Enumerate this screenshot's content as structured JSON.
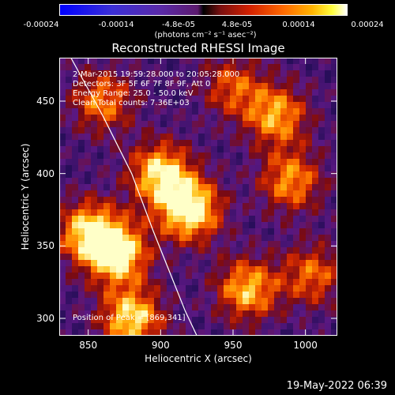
{
  "chart_data": {
    "type": "heatmap",
    "title": "Reconstructed RHESSI Image",
    "xlabel": "Heliocentric X (arcsec)",
    "ylabel": "Heliocentric Y (arcsec)",
    "xlim": [
      830,
      1022
    ],
    "ylim": [
      288,
      480
    ],
    "x_ticks": [
      {
        "value": 850,
        "label": "850"
      },
      {
        "value": 900,
        "label": "900"
      },
      {
        "value": 950,
        "label": "950"
      },
      {
        "value": 1000,
        "label": "1000"
      }
    ],
    "y_ticks": [
      {
        "value": 300,
        "label": "300"
      },
      {
        "value": 350,
        "label": "350"
      },
      {
        "value": 400,
        "label": "400"
      },
      {
        "value": 450,
        "label": "450"
      }
    ],
    "colorbar": {
      "range": [
        -0.00024,
        0.00024
      ],
      "tick_labels": [
        "-0.00024",
        "-0.00014",
        "-4.8e-05",
        "4.8e-05",
        "0.00014",
        "0.00024"
      ],
      "tick_values": [
        -0.00024,
        -0.00014,
        -4.8e-05,
        4.8e-05,
        0.00014,
        0.00024
      ],
      "units": "(photons cm⁻² s⁻¹ asec⁻²)"
    },
    "sources": [
      {
        "x": 920,
        "y": 375,
        "intensity": 1.0
      },
      {
        "x": 900,
        "y": 400,
        "intensity": 0.85
      },
      {
        "x": 870,
        "y": 345,
        "intensity": 0.95
      },
      {
        "x": 850,
        "y": 360,
        "intensity": 0.8
      },
      {
        "x": 880,
        "y": 300,
        "intensity": 0.85
      },
      {
        "x": 960,
        "y": 320,
        "intensity": 0.75
      },
      {
        "x": 980,
        "y": 440,
        "intensity": 0.7
      },
      {
        "x": 990,
        "y": 395,
        "intensity": 0.65
      },
      {
        "x": 860,
        "y": 450,
        "intensity": 0.6
      },
      {
        "x": 950,
        "y": 460,
        "intensity": 0.5
      },
      {
        "x": 1005,
        "y": 330,
        "intensity": 0.55
      }
    ],
    "limb_curve": [
      [
        838,
        480
      ],
      [
        860,
        440
      ],
      [
        880,
        400
      ],
      [
        895,
        360
      ],
      [
        907,
        330
      ],
      [
        917,
        305
      ],
      [
        925,
        288
      ]
    ],
    "grid": false
  },
  "annotations": {
    "time_range": "2-Mar-2015 19:59:28.000 to 20:05:28.000",
    "detectors": "Detectors: 3F 5F 6F 7F 8F 9F, Att 0",
    "energy": "Energy Range: 25.0 - 50.0 keV",
    "clean": "Clean    Total counts: 7.36E+03",
    "peak": "Position of Peak = [869,341]"
  },
  "footer": {
    "timestamp": "19-May-2022 06:39"
  },
  "colors": {
    "background": "#000000",
    "foreground": "#ffffff"
  }
}
